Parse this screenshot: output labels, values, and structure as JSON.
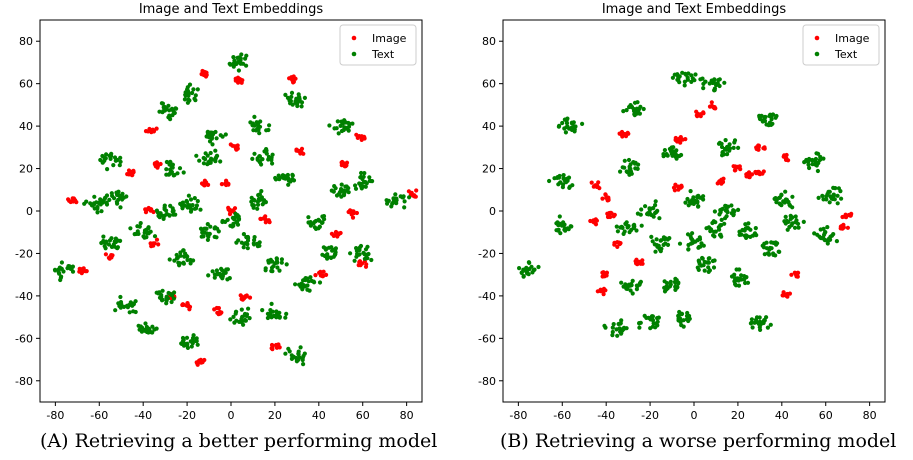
{
  "captions": [
    "(A) Retrieving a better performing model",
    "(B) Retrieving a worse performing model"
  ],
  "chart_data": [
    {
      "type": "scatter",
      "title": "Image and Text Embeddings",
      "xlim": [
        -87,
        87
      ],
      "ylim": [
        -90,
        90
      ],
      "xticks": [
        "-80",
        "-60",
        "-40",
        "-20",
        "0",
        "20",
        "40",
        "60",
        "80"
      ],
      "yticks": [
        "80",
        "60",
        "40",
        "20",
        "0",
        "-20",
        "-40",
        "-60",
        "-80"
      ],
      "grid": false,
      "legend_position": "top-right",
      "series": [
        {
          "name": "Image",
          "color": "#ff0000",
          "clusters": [
            [
              -12,
              65
            ],
            [
              4,
              62
            ],
            [
              28,
              62
            ],
            [
              -36,
              38
            ],
            [
              59,
              35
            ],
            [
              2,
              30
            ],
            [
              31,
              28
            ],
            [
              -34,
              22
            ],
            [
              -46,
              18
            ],
            [
              52,
              22
            ],
            [
              -12,
              13
            ],
            [
              -37,
              1
            ],
            [
              -2,
              13
            ],
            [
              16,
              -4
            ],
            [
              -72,
              5
            ],
            [
              48,
              -11
            ],
            [
              -35,
              -15
            ],
            [
              -55,
              -21
            ],
            [
              -68,
              -28
            ],
            [
              60,
              -25
            ],
            [
              41,
              -30
            ],
            [
              -27,
              -40
            ],
            [
              6,
              -41
            ],
            [
              -5,
              -47
            ],
            [
              20,
              -64
            ],
            [
              -14,
              -71
            ],
            [
              83,
              8
            ],
            [
              55,
              -1
            ],
            [
              0,
              0
            ],
            [
              -20,
              -45
            ]
          ]
        },
        {
          "name": "Text",
          "color": "#008000",
          "clusters": [
            [
              3,
              70
            ],
            [
              -18,
              55
            ],
            [
              -28,
              47
            ],
            [
              29,
              52
            ],
            [
              -8,
              35
            ],
            [
              12,
              40
            ],
            [
              50,
              40
            ],
            [
              -55,
              24
            ],
            [
              -26,
              19
            ],
            [
              -62,
              3
            ],
            [
              -53,
              6
            ],
            [
              -76,
              -28
            ],
            [
              -55,
              -15
            ],
            [
              -48,
              -45
            ],
            [
              -38,
              -55
            ],
            [
              -20,
              -62
            ],
            [
              30,
              -68
            ],
            [
              40,
              -5
            ],
            [
              60,
              -20
            ],
            [
              76,
              5
            ],
            [
              60,
              14
            ],
            [
              50,
              10
            ],
            [
              25,
              15
            ],
            [
              -22,
              -22
            ],
            [
              -10,
              -10
            ],
            [
              0,
              -5
            ],
            [
              12,
              5
            ],
            [
              -5,
              -30
            ],
            [
              -30,
              -40
            ],
            [
              20,
              -25
            ],
            [
              45,
              -20
            ],
            [
              5,
              -50
            ],
            [
              20,
              -48
            ],
            [
              -18,
              3
            ],
            [
              -40,
              -10
            ],
            [
              35,
              -35
            ],
            [
              8,
              -15
            ],
            [
              -10,
              25
            ],
            [
              15,
              25
            ],
            [
              -30,
              0
            ]
          ]
        }
      ]
    },
    {
      "type": "scatter",
      "title": "Image and Text Embeddings",
      "xlim": [
        -87,
        87
      ],
      "ylim": [
        -90,
        90
      ],
      "xticks": [
        "-80",
        "-60",
        "-40",
        "-20",
        "0",
        "20",
        "40",
        "60",
        "80"
      ],
      "yticks": [
        "80",
        "60",
        "40",
        "20",
        "0",
        "-20",
        "-40",
        "-60",
        "-80"
      ],
      "grid": false,
      "legend_position": "top-right",
      "series": [
        {
          "name": "Image",
          "color": "#ff0000",
          "clusters": [
            [
              -32,
              36
            ],
            [
              -6,
              34
            ],
            [
              2,
              46
            ],
            [
              8,
              49
            ],
            [
              30,
              30
            ],
            [
              42,
              25
            ],
            [
              -40,
              6
            ],
            [
              -45,
              12
            ],
            [
              -38,
              -2
            ],
            [
              -46,
              -5
            ],
            [
              -35,
              -15
            ],
            [
              -40,
              -30
            ],
            [
              -42,
              -38
            ],
            [
              -25,
              -24
            ],
            [
              70,
              -2
            ],
            [
              68,
              -8
            ],
            [
              47,
              -30
            ],
            [
              42,
              -40
            ],
            [
              30,
              18
            ],
            [
              20,
              20
            ],
            [
              -8,
              11
            ],
            [
              12,
              14
            ],
            [
              25,
              17
            ]
          ]
        },
        {
          "name": "Text",
          "color": "#008000",
          "clusters": [
            [
              -5,
              63
            ],
            [
              8,
              60
            ],
            [
              -27,
              48
            ],
            [
              -57,
              40
            ],
            [
              33,
              43
            ],
            [
              15,
              30
            ],
            [
              -10,
              28
            ],
            [
              -30,
              21
            ],
            [
              -60,
              14
            ],
            [
              54,
              23
            ],
            [
              62,
              7
            ],
            [
              -60,
              -7
            ],
            [
              -76,
              -28
            ],
            [
              -28,
              -35
            ],
            [
              -35,
              -55
            ],
            [
              -20,
              -52
            ],
            [
              -5,
              -50
            ],
            [
              30,
              -52
            ],
            [
              60,
              -12
            ],
            [
              0,
              5
            ],
            [
              10,
              -8
            ],
            [
              -15,
              -15
            ],
            [
              -20,
              0
            ],
            [
              5,
              -25
            ],
            [
              25,
              -10
            ],
            [
              35,
              -18
            ],
            [
              45,
              -5
            ],
            [
              -10,
              -35
            ],
            [
              20,
              -32
            ],
            [
              0,
              -15
            ],
            [
              40,
              5
            ],
            [
              -30,
              -8
            ],
            [
              15,
              0
            ]
          ]
        }
      ]
    }
  ]
}
